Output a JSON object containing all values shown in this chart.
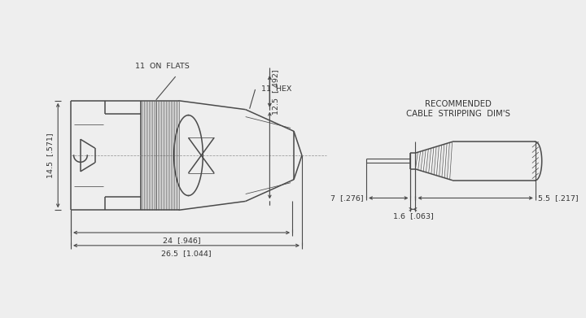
{
  "bg_color": "#eeeeee",
  "line_color": "#4a4a4a",
  "dim_color": "#4a4a4a",
  "text_color": "#333333",
  "lw_main": 1.1,
  "lw_dim": 0.8,
  "lw_thin": 0.55,
  "fs": 6.8,
  "annotations": {
    "on_flats": "11  ON  FLATS",
    "hex": "11  HEX",
    "dim_12_5": "12.5  [.492]",
    "dim_14_5": "14.5  [.571]",
    "dim_24": "24  [.946]",
    "dim_26_5": "26.5  [1.044]",
    "dim_7": "7  [.276]",
    "dim_1_6": "1.6  [.063]",
    "dim_5_5": "5.5  [.217]",
    "rec_label1": "RECOMMENDED",
    "rec_label2": "CABLE  STRIPPING  DIM'S"
  }
}
